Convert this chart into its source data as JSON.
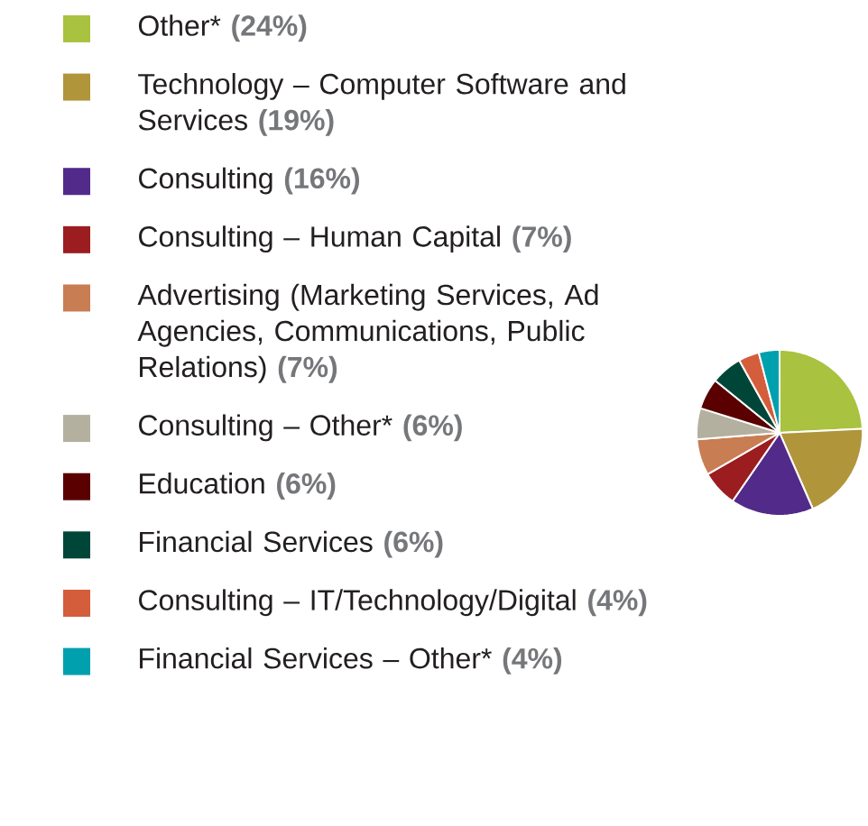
{
  "chart_data": {
    "type": "pie",
    "legend": "left",
    "categories": [
      "Other* **(24%)**",
      "Technology – Computer Software and Services **(19%)**",
      "Consulting **(16%)**",
      "Consulting – Human Capital **(7%)**",
      "Advertising (Marketing Services, Ad Agencies, Communications, Public Relations) **(7%)**",
      "Consulting – Other* **(6%)**",
      "Education **(6%)**",
      "Financial Services **(6%)**",
      "Consulting – IT/Technology/Digital **(4%)**",
      "Financial Services – Other* **(4%)**"
    ],
    "values": [
      24,
      19,
      16,
      7,
      7,
      6,
      6,
      6,
      4,
      4
    ],
    "colors": [
      "#a9c23f",
      "#b0953a",
      "#522a8a",
      "#9b1d20",
      "#c97d52",
      "#b3b09f",
      "#5a0000",
      "#004638",
      "#d45d3c",
      "#00a0ae"
    ]
  }
}
